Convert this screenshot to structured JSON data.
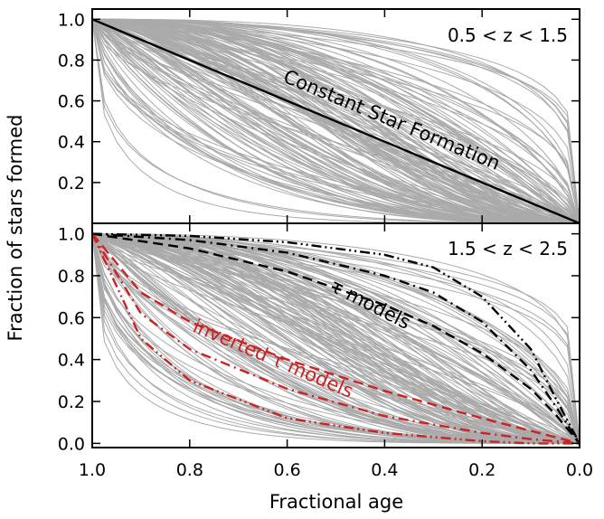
{
  "chart_data": {
    "type": "line",
    "ylabel": "Fraction of stars formed",
    "xlabel": "Fractional age",
    "x_reversed": true,
    "xlim": [
      1.0,
      0.0
    ],
    "x_ticks": [
      "1.0",
      "0.8",
      "0.6",
      "0.4",
      "0.2",
      "0.0"
    ],
    "x_tick_values": [
      1.0,
      0.8,
      0.6,
      0.4,
      0.2,
      0.0
    ],
    "colors": {
      "grey_tracks": "#aaaaaa",
      "tau": "#000000",
      "inverted_tau": "#cc2222",
      "constant": "#000000"
    },
    "panels": [
      {
        "label": "0.5 < z < 1.5",
        "ylim": [
          0.0,
          1.05
        ],
        "y_ticks": [
          "1.0",
          "0.8",
          "0.6",
          "0.4",
          "0.2"
        ],
        "y_tick_values": [
          1.0,
          0.8,
          0.6,
          0.4,
          0.2
        ],
        "annotation": "Constant Star Formation",
        "series": [
          {
            "style": "solid",
            "color": "#000000",
            "x": [
              1.0,
              0.0
            ],
            "y": [
              1.0,
              0.0
            ]
          }
        ]
      },
      {
        "label": "1.5 < z < 2.5",
        "ylim": [
          -0.02,
          1.05
        ],
        "y_ticks": [
          "1.0",
          "0.8",
          "0.6",
          "0.4",
          "0.2",
          "0.0"
        ],
        "y_tick_values": [
          1.0,
          0.8,
          0.6,
          0.4,
          0.2,
          0.0
        ],
        "annotations": [
          "τ models",
          "inverted τ models"
        ],
        "series": [
          {
            "group": "tau",
            "style": "dash-dot-dot",
            "color": "#000000",
            "x": [
              1.0,
              0.8,
              0.6,
              0.4,
              0.3,
              0.2,
              0.1,
              0.05,
              0.0
            ],
            "y": [
              1.0,
              0.99,
              0.96,
              0.9,
              0.84,
              0.7,
              0.45,
              0.22,
              0.0
            ]
          },
          {
            "group": "tau",
            "style": "dash-dot",
            "color": "#000000",
            "x": [
              1.0,
              0.8,
              0.6,
              0.4,
              0.3,
              0.2,
              0.1,
              0.05,
              0.0
            ],
            "y": [
              1.0,
              0.97,
              0.91,
              0.8,
              0.72,
              0.58,
              0.35,
              0.18,
              0.0
            ]
          },
          {
            "group": "tau",
            "style": "dashed",
            "color": "#000000",
            "x": [
              1.0,
              0.8,
              0.6,
              0.4,
              0.3,
              0.2,
              0.1,
              0.05,
              0.0
            ],
            "y": [
              1.0,
              0.93,
              0.82,
              0.66,
              0.56,
              0.43,
              0.26,
              0.14,
              0.0
            ]
          },
          {
            "group": "inverted_tau",
            "style": "dashed",
            "color": "#cc2222",
            "x": [
              1.0,
              0.9,
              0.8,
              0.6,
              0.4,
              0.2,
              0.1,
              0.0
            ],
            "y": [
              1.0,
              0.72,
              0.58,
              0.4,
              0.25,
              0.12,
              0.06,
              0.0
            ]
          },
          {
            "group": "inverted_tau",
            "style": "dash-dot",
            "color": "#cc2222",
            "x": [
              1.0,
              0.9,
              0.8,
              0.6,
              0.4,
              0.2,
              0.1,
              0.0
            ],
            "y": [
              1.0,
              0.62,
              0.45,
              0.26,
              0.13,
              0.05,
              0.02,
              0.0
            ]
          },
          {
            "group": "inverted_tau",
            "style": "dash-dot-dot",
            "color": "#cc2222",
            "x": [
              1.0,
              0.9,
              0.8,
              0.6,
              0.4,
              0.2,
              0.1,
              0.0
            ],
            "y": [
              1.0,
              0.5,
              0.3,
              0.12,
              0.05,
              0.01,
              0.0,
              0.0
            ]
          }
        ]
      }
    ]
  }
}
